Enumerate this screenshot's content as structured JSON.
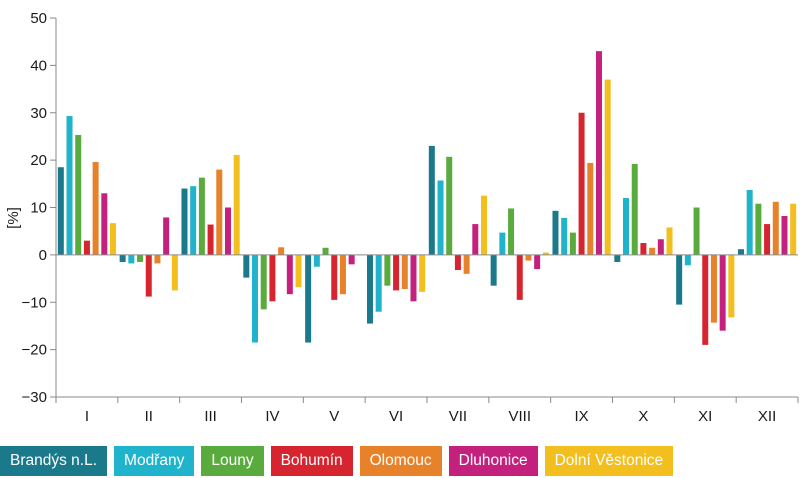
{
  "chart_data": {
    "type": "bar",
    "title": "",
    "xlabel": "",
    "ylabel": "[%]",
    "ylim": [
      -30,
      50
    ],
    "yticks": [
      50,
      40,
      30,
      20,
      10,
      0,
      -10,
      -20,
      -30
    ],
    "yticks_labels": [
      "50",
      "40",
      "30",
      "20",
      "10",
      "0",
      "−10",
      "−20",
      "−30"
    ],
    "grid": false,
    "legend_position": "bottom",
    "categories": [
      "I",
      "II",
      "III",
      "IV",
      "V",
      "VI",
      "VII",
      "VIII",
      "IX",
      "X",
      "XI",
      "XII"
    ],
    "series": [
      {
        "name": "Brandýs n.L.",
        "color": "#1a7a8c",
        "values": [
          18.5,
          -1.5,
          14,
          -4.8,
          -18.5,
          -14.5,
          23,
          -6.5,
          9.3,
          -1.5,
          -10.5,
          1.2
        ]
      },
      {
        "name": "Modřany",
        "color": "#1fb3cc",
        "values": [
          29.3,
          -1.8,
          14.5,
          -18.5,
          -2.5,
          -12,
          15.7,
          4.7,
          7.8,
          12,
          -2.2,
          13.7
        ]
      },
      {
        "name": "Louny",
        "color": "#5aab3e",
        "values": [
          25.3,
          -1.5,
          16.3,
          -11.5,
          1.5,
          -6.5,
          20.7,
          9.8,
          4.7,
          19.2,
          10,
          10.8
        ]
      },
      {
        "name": "Bohumín",
        "color": "#d7252f",
        "values": [
          3,
          -8.8,
          6.4,
          -9.8,
          -9.5,
          -7.5,
          -3.2,
          -9.5,
          30,
          2.5,
          -19,
          6.5
        ]
      },
      {
        "name": "Olomouc",
        "color": "#e8822a",
        "values": [
          19.6,
          -1.8,
          18,
          1.6,
          -8.3,
          -7.2,
          -4,
          -1.2,
          19.4,
          1.5,
          -14.3,
          11.2
        ]
      },
      {
        "name": "Dluhonice",
        "color": "#c4207d",
        "values": [
          13,
          7.9,
          10,
          -8.3,
          -2,
          -9.8,
          6.5,
          -3,
          43,
          3.3,
          -16,
          8.2
        ]
      },
      {
        "name": "Dolní Věstonice",
        "color": "#f2bf1f",
        "values": [
          6.7,
          -7.5,
          21.1,
          -6.8,
          0,
          -7.8,
          12.5,
          0.5,
          37,
          5.8,
          -13.2,
          10.8
        ]
      }
    ]
  }
}
